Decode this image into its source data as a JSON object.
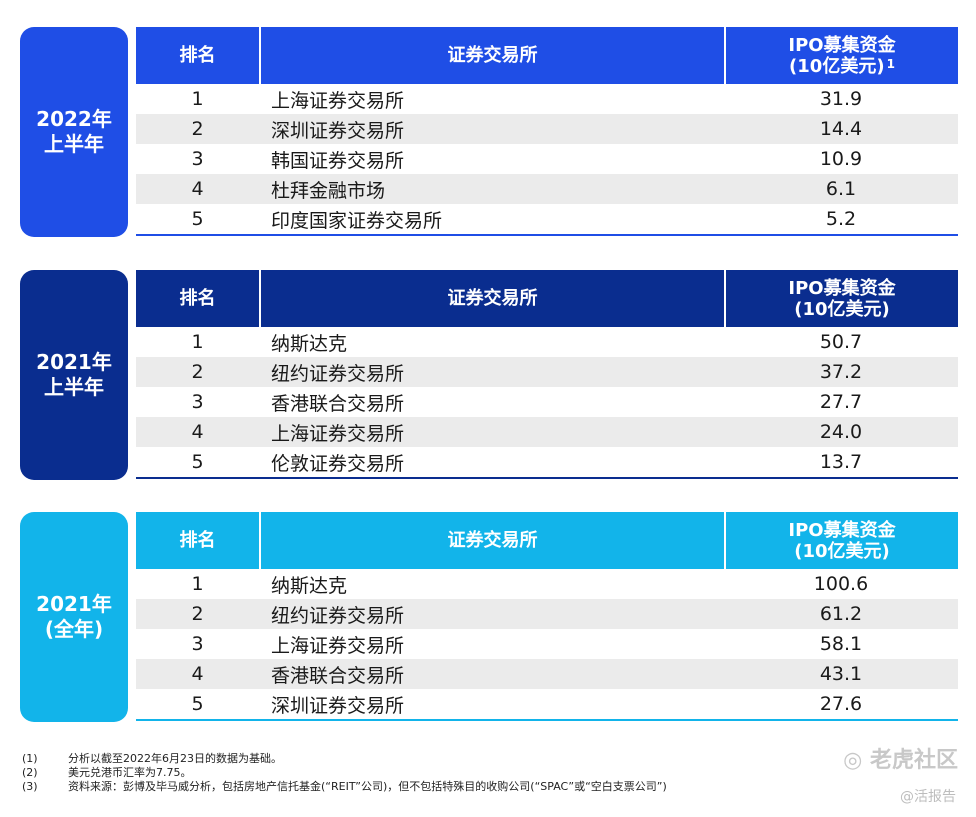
{
  "colors": {
    "sec1": "#1f4ee6",
    "sec2": "#0a2d8f",
    "sec3": "#12b4ea"
  },
  "headers": {
    "rank": "排名",
    "exchange": "证券交易所",
    "ipo_line1": "IPO募集资金",
    "ipo_line2": "(10亿美元)",
    "footnote_mark": "1"
  },
  "sections": [
    {
      "label_line1": "2022年",
      "label_line2": "上半年",
      "rows": [
        {
          "rank": "1",
          "exchange": "上海证券交易所",
          "ipo": "31.9"
        },
        {
          "rank": "2",
          "exchange": "深圳证券交易所",
          "ipo": "14.4"
        },
        {
          "rank": "3",
          "exchange": "韩国证券交易所",
          "ipo": "10.9"
        },
        {
          "rank": "4",
          "exchange": "杜拜金融市场",
          "ipo": "6.1"
        },
        {
          "rank": "5",
          "exchange": "印度国家证券交易所",
          "ipo": "5.2"
        }
      ]
    },
    {
      "label_line1": "2021年",
      "label_line2": "上半年",
      "rows": [
        {
          "rank": "1",
          "exchange": "纳斯达克",
          "ipo": "50.7"
        },
        {
          "rank": "2",
          "exchange": "纽约证券交易所",
          "ipo": "37.2"
        },
        {
          "rank": "3",
          "exchange": "香港联合交易所",
          "ipo": "27.7"
        },
        {
          "rank": "4",
          "exchange": "上海证券交易所",
          "ipo": "24.0"
        },
        {
          "rank": "5",
          "exchange": "伦敦证券交易所",
          "ipo": "13.7"
        }
      ]
    },
    {
      "label_line1": "2021年",
      "label_line2": "(全年)",
      "rows": [
        {
          "rank": "1",
          "exchange": "纳斯达克",
          "ipo": "100.6"
        },
        {
          "rank": "2",
          "exchange": "纽约证券交易所",
          "ipo": "61.2"
        },
        {
          "rank": "3",
          "exchange": "上海证券交易所",
          "ipo": "58.1"
        },
        {
          "rank": "4",
          "exchange": "香港联合交易所",
          "ipo": "43.1"
        },
        {
          "rank": "5",
          "exchange": "深圳证券交易所",
          "ipo": "27.6"
        }
      ]
    }
  ],
  "notes": [
    {
      "num": "(1)",
      "text": "分析以截至2022年6月23日的数据为基础。"
    },
    {
      "num": "(2)",
      "text": "美元兑港币汇率为7.75。"
    },
    {
      "num": "(3)",
      "text": "资料来源：彭博及毕马威分析，包括房地产信托基金(“REIT”公司)，但不包括特殊目的收购公司(“SPAC”或“空白支票公司”)"
    }
  ],
  "watermark": {
    "line1": "老虎社区",
    "line2": "@活报告"
  }
}
